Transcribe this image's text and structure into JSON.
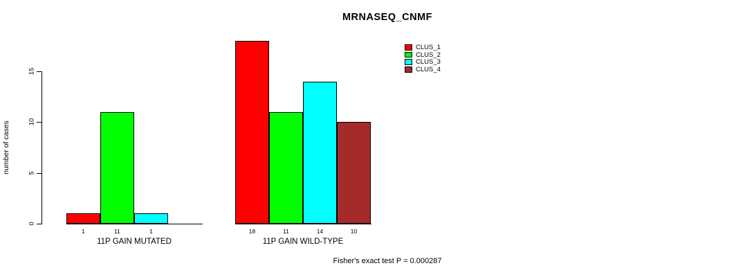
{
  "chart_data": {
    "type": "bar",
    "variant": "grouped_bar",
    "title": "MRNASEQ_CNMF",
    "ylabel": "number of cases",
    "yticks": [
      0,
      5,
      10,
      15
    ],
    "ylim": [
      0,
      18
    ],
    "grid": false,
    "legend_position": "top-right",
    "legend": [
      {
        "label": "CLUS_1",
        "color": "#FF0000"
      },
      {
        "label": "CLUS_2",
        "color": "#00FF00"
      },
      {
        "label": "CLUS_3",
        "color": "#00FFFF"
      },
      {
        "label": "CLUS_4",
        "color": "#A52A2A"
      }
    ],
    "categories": [
      "11P GAIN MUTATED",
      "11P GAIN WILD-TYPE"
    ],
    "groups": [
      {
        "label": "11P GAIN MUTATED",
        "values": [
          1,
          11,
          1,
          0
        ],
        "bar_labels": [
          "1",
          "11",
          "1",
          ""
        ]
      },
      {
        "label": "11P GAIN WILD-TYPE",
        "values": [
          18,
          11,
          14,
          10
        ],
        "bar_labels": [
          "18",
          "11",
          "14",
          "10"
        ]
      }
    ],
    "footnote": "Fisher's exact test P = 0.000287",
    "bar_border_color": "#000000",
    "axis_color": "#000000",
    "text_color": "#000000",
    "background_color": "#FFFFFF"
  }
}
